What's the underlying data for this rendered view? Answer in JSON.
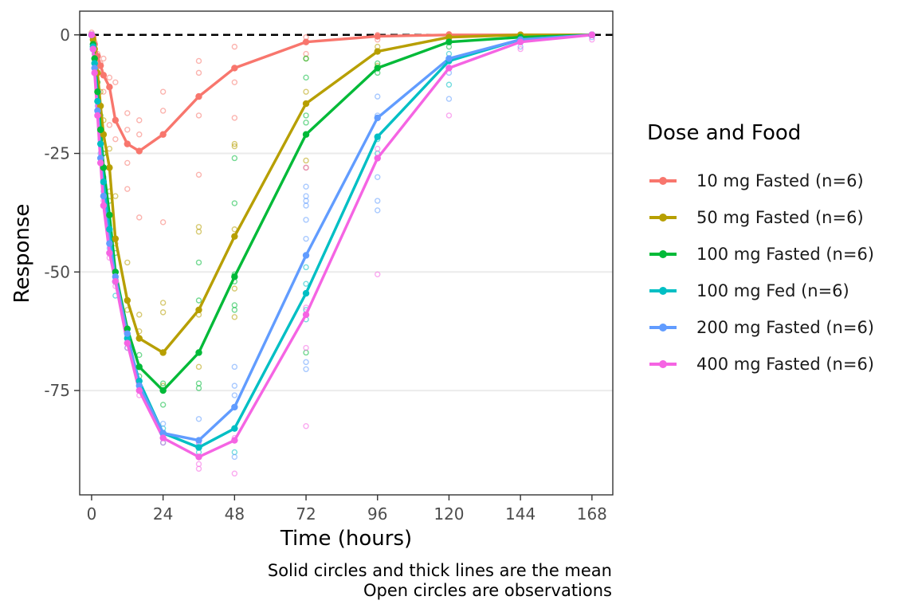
{
  "chart_data": {
    "type": "line",
    "xlabel": "Time (hours)",
    "ylabel": "Response",
    "xlim": [
      -4,
      175
    ],
    "ylim": [
      -97,
      5
    ],
    "xticks": [
      0,
      24,
      48,
      72,
      96,
      120,
      144,
      168
    ],
    "yticks": [
      0,
      -25,
      -50,
      -75
    ],
    "reference_line": {
      "y": 0,
      "style": "dashed"
    },
    "grid": "horizontal major",
    "legend": {
      "title": "Dose and Food",
      "placement": "right",
      "entries": [
        "10 mg Fasted (n=6)",
        "50 mg Fasted (n=6)",
        "100 mg Fasted (n=6)",
        "100 mg Fed (n=6)",
        "200 mg Fasted (n=6)",
        "400 mg Fasted (n=6)"
      ]
    },
    "x": [
      0,
      0.5,
      1,
      2,
      3,
      4,
      6,
      8,
      12,
      16,
      24,
      36,
      48,
      72,
      96,
      120,
      144,
      168
    ],
    "series": [
      {
        "name": "10 mg Fasted (n=6)",
        "color": "#F8766D",
        "values": [
          0,
          -0.5,
          -2,
          -4.5,
          -6.5,
          -8.5,
          -11,
          -18,
          -23,
          -24.5,
          -21,
          -13,
          -7,
          -1.5,
          -0.3,
          0,
          0,
          0
        ],
        "observations": [
          [
            0,
            0.5
          ],
          [
            1,
            -1.5
          ],
          [
            1,
            -2.8
          ],
          [
            2,
            -4
          ],
          [
            2,
            -5.5
          ],
          [
            3,
            -6
          ],
          [
            3,
            -7.5
          ],
          [
            4,
            -5
          ],
          [
            4,
            -12
          ],
          [
            6,
            -9
          ],
          [
            6,
            -19
          ],
          [
            8,
            -10
          ],
          [
            8,
            -22
          ],
          [
            12,
            -16.5
          ],
          [
            12,
            -20
          ],
          [
            12,
            -27
          ],
          [
            12,
            -32.5
          ],
          [
            16,
            -18
          ],
          [
            16,
            -21
          ],
          [
            16,
            -38.5
          ],
          [
            24,
            -12
          ],
          [
            24,
            -16
          ],
          [
            24,
            -39.5
          ],
          [
            36,
            -5.5
          ],
          [
            36,
            -8
          ],
          [
            36,
            -17
          ],
          [
            36,
            -29.5
          ],
          [
            48,
            -2.5
          ],
          [
            48,
            -10
          ],
          [
            48,
            -17.5
          ],
          [
            72,
            -0.5
          ],
          [
            72,
            -4
          ],
          [
            96,
            0
          ],
          [
            96,
            -1
          ],
          [
            120,
            0.2
          ],
          [
            120,
            -0.5
          ],
          [
            144,
            0
          ],
          [
            168,
            0
          ]
        ]
      },
      {
        "name": "50 mg Fasted (n=6)",
        "color": "#B79F00",
        "values": [
          0,
          -1,
          -3,
          -8,
          -15,
          -21,
          -28,
          -43,
          -56,
          -64,
          -67,
          -58,
          -42.5,
          -14.5,
          -3.5,
          -0.5,
          0,
          0
        ],
        "observations": [
          [
            1,
            -3
          ],
          [
            2,
            -6
          ],
          [
            2,
            -10
          ],
          [
            3,
            -12
          ],
          [
            3,
            -19
          ],
          [
            4,
            -18
          ],
          [
            4,
            -25
          ],
          [
            6,
            -24
          ],
          [
            6,
            -33
          ],
          [
            8,
            -34
          ],
          [
            8,
            -44
          ],
          [
            12,
            -48
          ],
          [
            12,
            -58
          ],
          [
            16,
            -59
          ],
          [
            16,
            -62.5
          ],
          [
            24,
            -56.5
          ],
          [
            24,
            -58.5
          ],
          [
            24,
            -74
          ],
          [
            36,
            -40.5
          ],
          [
            36,
            -41.5
          ],
          [
            36,
            -59
          ],
          [
            36,
            -70
          ],
          [
            48,
            -23
          ],
          [
            48,
            -23.5
          ],
          [
            48,
            -41
          ],
          [
            48,
            -53.5
          ],
          [
            48,
            -59.5
          ],
          [
            72,
            -5
          ],
          [
            72,
            -12
          ],
          [
            72,
            -26.5
          ],
          [
            72,
            -28
          ],
          [
            96,
            -2.5
          ],
          [
            96,
            -6.5
          ],
          [
            120,
            -0.5
          ],
          [
            144,
            0
          ]
        ]
      },
      {
        "name": "100 mg Fasted (n=6)",
        "color": "#00BA38",
        "values": [
          0,
          -2,
          -5,
          -12,
          -20,
          -28,
          -38,
          -50,
          -62,
          -70,
          -75,
          -67,
          -51,
          -21,
          -7,
          -1.5,
          -0.5,
          0
        ],
        "observations": [
          [
            1,
            -4
          ],
          [
            2,
            -10
          ],
          [
            3,
            -17
          ],
          [
            4,
            -25
          ],
          [
            6,
            -35
          ],
          [
            8,
            -46
          ],
          [
            12,
            -62
          ],
          [
            16,
            -67.5
          ],
          [
            16,
            -72
          ],
          [
            24,
            -78
          ],
          [
            24,
            -73.5
          ],
          [
            36,
            -48
          ],
          [
            36,
            -56
          ],
          [
            36,
            -73.5
          ],
          [
            36,
            -74.5
          ],
          [
            48,
            -26
          ],
          [
            48,
            -35.5
          ],
          [
            48,
            -50.5
          ],
          [
            48,
            -52
          ],
          [
            48,
            -57
          ],
          [
            48,
            -58
          ],
          [
            72,
            -5
          ],
          [
            72,
            -9
          ],
          [
            72,
            -17
          ],
          [
            72,
            -18.5
          ],
          [
            72,
            -67
          ],
          [
            96,
            -6
          ],
          [
            96,
            -8
          ],
          [
            120,
            -1
          ],
          [
            120,
            -2.5
          ],
          [
            144,
            -0.5
          ],
          [
            168,
            0
          ]
        ]
      },
      {
        "name": "100 mg Fed (n=6)",
        "color": "#00BFC4",
        "values": [
          0,
          -2.5,
          -6,
          -14,
          -23,
          -31,
          -41,
          -52,
          -64,
          -73,
          -84,
          -87,
          -83,
          -54.5,
          -21.5,
          -5.5,
          -1,
          0
        ],
        "observations": [
          [
            1,
            -5
          ],
          [
            2,
            -14
          ],
          [
            3,
            -22
          ],
          [
            4,
            -30
          ],
          [
            6,
            -42
          ],
          [
            8,
            -55
          ],
          [
            12,
            -66
          ],
          [
            16,
            -73
          ],
          [
            24,
            -83
          ],
          [
            24,
            -86
          ],
          [
            36,
            -85.5
          ],
          [
            36,
            -88
          ],
          [
            48,
            -83
          ],
          [
            48,
            -88
          ],
          [
            72,
            -49
          ],
          [
            72,
            -52.5
          ],
          [
            72,
            -58
          ],
          [
            72,
            -60
          ],
          [
            96,
            -22
          ],
          [
            96,
            -25
          ],
          [
            120,
            -4
          ],
          [
            120,
            -10.5
          ],
          [
            144,
            -1
          ]
        ]
      },
      {
        "name": "200 mg Fasted (n=6)",
        "color": "#619CFF",
        "values": [
          0,
          -3,
          -7,
          -16,
          -26,
          -34,
          -44,
          -51,
          -63,
          -74,
          -84,
          -85.5,
          -78.5,
          -46.5,
          -17.5,
          -5,
          -1,
          0
        ],
        "observations": [
          [
            1,
            -6
          ],
          [
            2,
            -15
          ],
          [
            3,
            -25
          ],
          [
            4,
            -33
          ],
          [
            6,
            -45
          ],
          [
            8,
            -50
          ],
          [
            12,
            -62
          ],
          [
            16,
            -75
          ],
          [
            24,
            -82
          ],
          [
            24,
            -84
          ],
          [
            36,
            -81
          ],
          [
            36,
            -86.5
          ],
          [
            48,
            -70
          ],
          [
            48,
            -74
          ],
          [
            48,
            -76
          ],
          [
            48,
            -89
          ],
          [
            72,
            -32
          ],
          [
            72,
            -34
          ],
          [
            72,
            -35
          ],
          [
            72,
            -36
          ],
          [
            72,
            -39
          ],
          [
            72,
            -43
          ],
          [
            72,
            -69
          ],
          [
            72,
            -70.5
          ],
          [
            96,
            -13
          ],
          [
            96,
            -17
          ],
          [
            96,
            -30
          ],
          [
            96,
            -35
          ],
          [
            96,
            -37
          ],
          [
            120,
            -8
          ],
          [
            120,
            -13.5
          ],
          [
            144,
            -1.5
          ],
          [
            144,
            -2.5
          ],
          [
            168,
            -0.5
          ]
        ]
      },
      {
        "name": "400 mg Fasted (n=6)",
        "color": "#F564E3",
        "values": [
          0,
          -3,
          -8,
          -17,
          -27,
          -36,
          -46,
          -52,
          -65,
          -75,
          -85,
          -89,
          -85.5,
          -59,
          -26,
          -7,
          -1.5,
          0
        ],
        "observations": [
          [
            1,
            -7
          ],
          [
            2,
            -17
          ],
          [
            3,
            -27
          ],
          [
            4,
            -35
          ],
          [
            6,
            -47
          ],
          [
            8,
            -53
          ],
          [
            12,
            -66
          ],
          [
            16,
            -76
          ],
          [
            24,
            -85
          ],
          [
            24,
            -86
          ],
          [
            36,
            -86
          ],
          [
            36,
            -90.5
          ],
          [
            36,
            -91.5
          ],
          [
            48,
            -85
          ],
          [
            48,
            -92.5
          ],
          [
            72,
            -28
          ],
          [
            72,
            -57.5
          ],
          [
            72,
            -66
          ],
          [
            72,
            -82.5
          ],
          [
            96,
            -24
          ],
          [
            96,
            -50.5
          ],
          [
            120,
            -17
          ],
          [
            120,
            -7
          ],
          [
            144,
            -3
          ],
          [
            144,
            -1
          ],
          [
            168,
            -1
          ]
        ]
      }
    ]
  },
  "caption": {
    "line1": "Solid circles and thick lines are the mean",
    "line2": "Open circles are observations"
  }
}
